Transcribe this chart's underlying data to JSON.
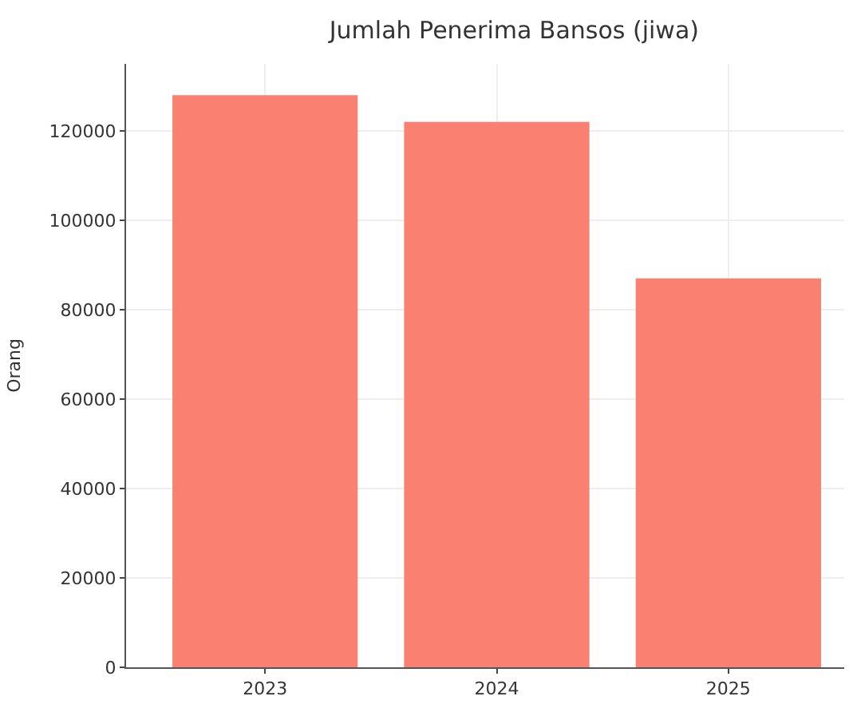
{
  "chart_data": {
    "type": "bar",
    "title": "Jumlah Penerima Bansos (jiwa)",
    "ylabel": "Orang",
    "categories": [
      "2023",
      "2024",
      "2025"
    ],
    "values": [
      128000,
      122000,
      87000
    ],
    "color": "#fa8072",
    "ylim": [
      0,
      135000
    ],
    "yticks": [
      0,
      20000,
      40000,
      60000,
      80000,
      100000,
      120000
    ],
    "grid": true
  }
}
